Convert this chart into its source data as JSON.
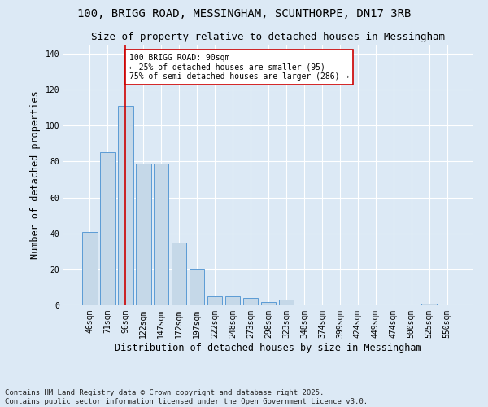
{
  "title1": "100, BRIGG ROAD, MESSINGHAM, SCUNTHORPE, DN17 3RB",
  "title2": "Size of property relative to detached houses in Messingham",
  "xlabel": "Distribution of detached houses by size in Messingham",
  "ylabel": "Number of detached properties",
  "categories": [
    "46sqm",
    "71sqm",
    "96sqm",
    "122sqm",
    "147sqm",
    "172sqm",
    "197sqm",
    "222sqm",
    "248sqm",
    "273sqm",
    "298sqm",
    "323sqm",
    "348sqm",
    "374sqm",
    "399sqm",
    "424sqm",
    "449sqm",
    "474sqm",
    "500sqm",
    "525sqm",
    "550sqm"
  ],
  "values": [
    41,
    85,
    111,
    79,
    79,
    35,
    20,
    5,
    5,
    4,
    2,
    3,
    0,
    0,
    0,
    0,
    0,
    0,
    0,
    1,
    0
  ],
  "bar_color": "#c5d8e8",
  "bar_edge_color": "#5b9bd5",
  "vline_x_index": 2,
  "vline_color": "#cc0000",
  "annotation_text": "100 BRIGG ROAD: 90sqm\n← 25% of detached houses are smaller (95)\n75% of semi-detached houses are larger (286) →",
  "annotation_box_color": "#ffffff",
  "annotation_box_edge": "#cc0000",
  "ylim": [
    0,
    145
  ],
  "yticks": [
    0,
    20,
    40,
    60,
    80,
    100,
    120,
    140
  ],
  "bg_color": "#dce9f5",
  "footer": "Contains HM Land Registry data © Crown copyright and database right 2025.\nContains public sector information licensed under the Open Government Licence v3.0.",
  "title_fontsize": 10,
  "title2_fontsize": 9,
  "axis_label_fontsize": 8.5,
  "tick_fontsize": 7,
  "footer_fontsize": 6.5
}
